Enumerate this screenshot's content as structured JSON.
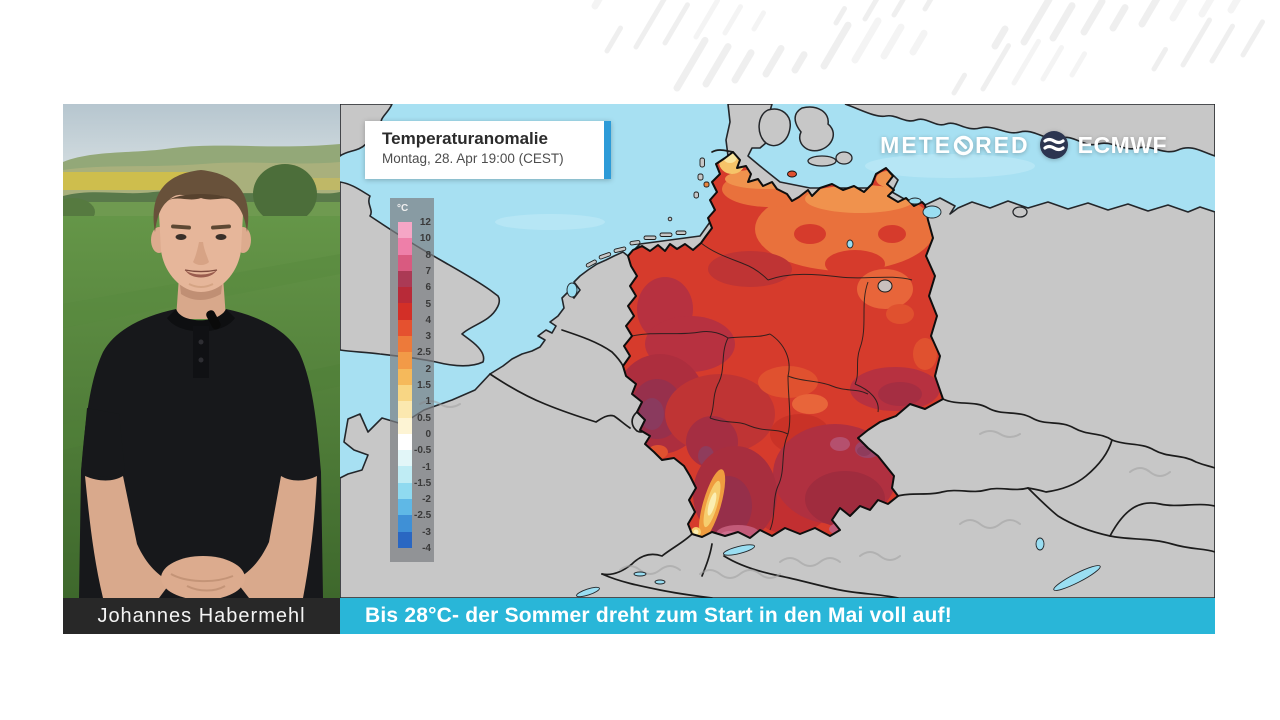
{
  "header": {
    "title_box": {
      "title": "Temperaturanomalie",
      "subtitle": "Montag, 28. Apr 19:00 (CEST)",
      "accent_color": "#2d9bd8"
    },
    "branding": {
      "meteored_prefix": "METE",
      "meteored_suffix": "RED",
      "ecmwf": "ECMWF"
    }
  },
  "legend": {
    "unit": "°C",
    "ticks": [
      "12",
      "10",
      "8",
      "7",
      "6",
      "5",
      "4",
      "3",
      "2.5",
      "2",
      "1.5",
      "1",
      "0.5",
      "0",
      "-0.5",
      "-1",
      "-1.5",
      "-2",
      "-2.5",
      "-3",
      "-4"
    ],
    "colors": [
      "#f5a6c6",
      "#ee7fa9",
      "#d95a80",
      "#ab3a55",
      "#b82a38",
      "#d32f27",
      "#e5512f",
      "#ed7a3a",
      "#f29a47",
      "#f5b95b",
      "#f8d684",
      "#fbe8af",
      "#fdf4d4",
      "#ffffff",
      "#e2f6f8",
      "#bfecf4",
      "#8fdaf0",
      "#5fb8e6",
      "#3f90d6",
      "#2a67c2"
    ]
  },
  "presenter": {
    "name": "Johannes Habermehl"
  },
  "banner": {
    "headline": "Bis 28°C- der Sommer dreht zum Start in den Mai voll auf!",
    "background": "#29b6d8"
  },
  "map_colors": {
    "sea": "#a7e0f2",
    "land": "#c7c7c7",
    "anomaly_base": "#d63b2c",
    "lake": "#9adef2"
  }
}
